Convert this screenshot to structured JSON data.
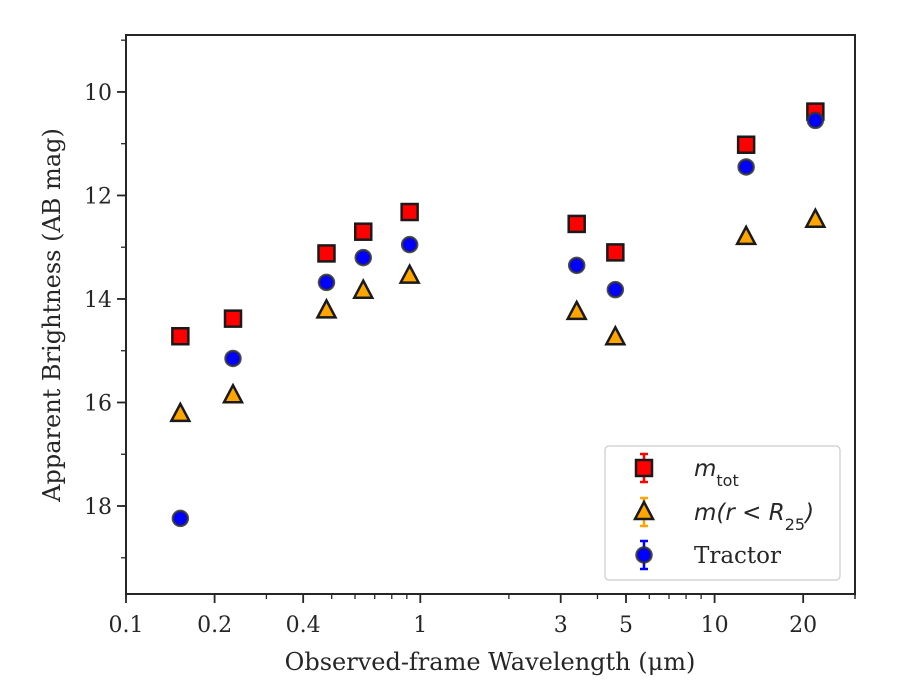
{
  "chart_data": {
    "type": "scatter",
    "xlabel": "Observed-frame Wavelength (μm)",
    "ylabel": "Apparent Brightness (AB mag)",
    "xscale": "log",
    "xlim": [
      0.1,
      30
    ],
    "ylim": [
      19.7,
      8.9
    ],
    "y_inverted": true,
    "x_ticks": [
      0.1,
      0.2,
      0.4,
      1,
      3,
      5,
      10,
      20
    ],
    "x_tick_labels": [
      "0.1",
      "0.2",
      "0.4",
      "1",
      "3",
      "5",
      "10",
      "20"
    ],
    "y_ticks": [
      10,
      12,
      14,
      16,
      18
    ],
    "y_tick_labels": [
      "10",
      "12",
      "14",
      "16",
      "18"
    ],
    "grid": false,
    "legend_position": "lower-right",
    "series": [
      {
        "name": "m_tot",
        "legend_main": "m",
        "legend_sub": "tot",
        "marker": "square",
        "color": "#ff0000",
        "x": [
          0.153,
          0.231,
          0.48,
          0.64,
          0.92,
          3.4,
          4.6,
          12.8,
          22.0
        ],
        "y": [
          14.72,
          14.38,
          13.12,
          12.7,
          12.32,
          12.55,
          13.1,
          11.02,
          10.38
        ]
      },
      {
        "name": "m(r < R25)",
        "legend_main": "m(r < R",
        "legend_sub": "25",
        "legend_suffix": ")",
        "marker": "triangle",
        "color": "#ffa500",
        "x": [
          0.153,
          0.231,
          0.48,
          0.64,
          0.92,
          3.4,
          4.6,
          12.8,
          22.0
        ],
        "y": [
          16.22,
          15.86,
          14.22,
          13.84,
          13.55,
          14.25,
          14.74,
          12.8,
          12.47
        ]
      },
      {
        "name": "Tractor",
        "legend_main": "Tractor",
        "marker": "circle",
        "color": "#0000ff",
        "x": [
          0.153,
          0.231,
          0.48,
          0.64,
          0.92,
          3.4,
          4.6,
          12.8,
          22.0
        ],
        "y": [
          18.24,
          15.15,
          13.68,
          13.2,
          12.95,
          13.35,
          13.82,
          11.45,
          10.55
        ]
      }
    ]
  }
}
